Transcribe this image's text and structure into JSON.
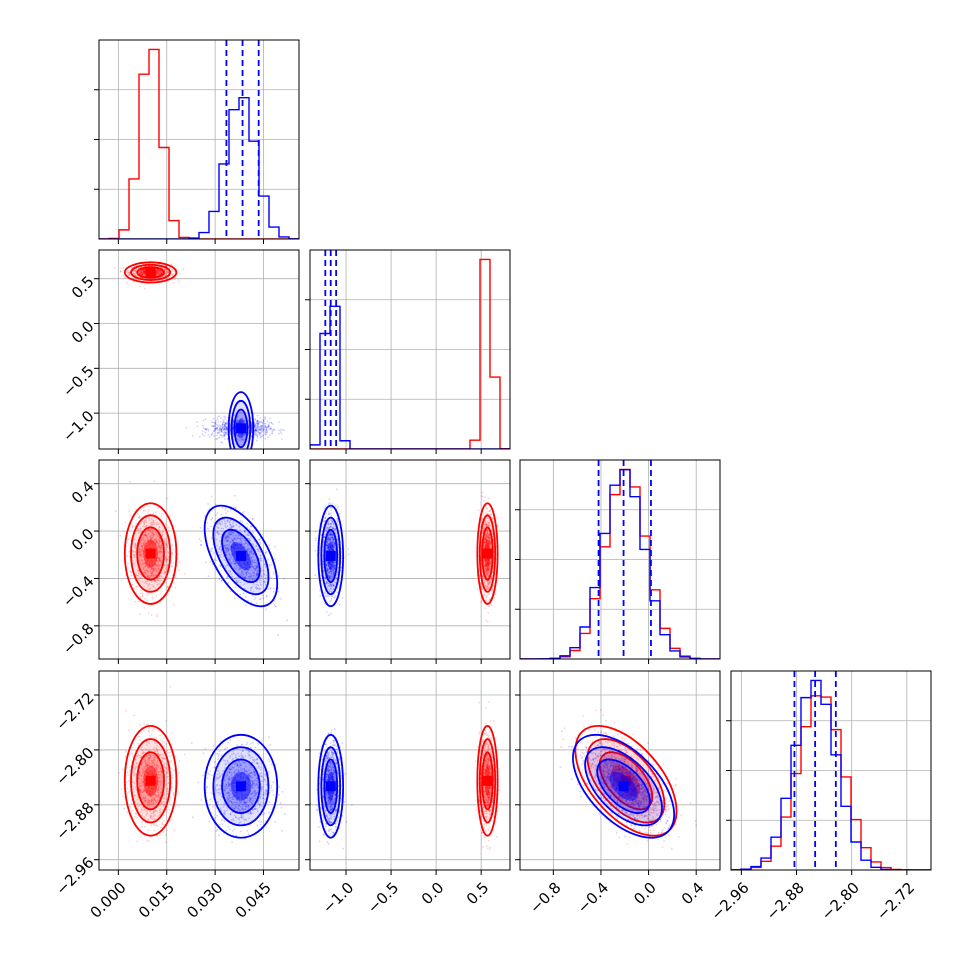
{
  "chart_data": {
    "type": "corner",
    "colors": {
      "series_a": "#ff0000",
      "series_b": "#0000ff",
      "grid": "#b0b0b0",
      "quantile_line": "#0000ff"
    },
    "grid": true,
    "parameters": [
      {
        "range": [
          -0.006,
          0.056
        ],
        "ticks": [
          0.0,
          0.015,
          0.03,
          0.045
        ],
        "tick_labels": [
          "0.000",
          "0.015",
          "0.030",
          "0.045"
        ]
      },
      {
        "range": [
          -1.4,
          0.82
        ],
        "ticks": [
          -1.0,
          -0.5,
          0.0,
          0.5
        ],
        "tick_labels": [
          "−1.0",
          "−0.5",
          "0.0",
          "0.5"
        ]
      },
      {
        "range": [
          -1.08,
          0.6
        ],
        "ticks": [
          -0.8,
          -0.4,
          0.0,
          0.4
        ],
        "tick_labels": [
          "−0.8",
          "−0.4",
          "0.0",
          "0.4"
        ]
      },
      {
        "range": [
          -2.975,
          -2.685
        ],
        "ticks": [
          -2.96,
          -2.88,
          -2.8,
          -2.72
        ],
        "tick_labels": [
          "−2.96",
          "−2.88",
          "−2.80",
          "−2.72"
        ]
      }
    ],
    "series": [
      {
        "color": "#ff0000",
        "means": [
          0.01,
          0.57,
          -0.19,
          -2.845
        ],
        "sds": [
          0.0032,
          0.045,
          0.17,
          0.032
        ],
        "corr": [
          [
            0,
            1,
            0,
            0
          ],
          [
            0,
            2,
            0,
            0
          ],
          [
            0,
            3,
            0,
            0
          ],
          [
            1,
            2,
            0,
            0
          ],
          [
            1,
            3,
            0,
            0
          ],
          [
            2,
            3,
            -0.55,
            0
          ]
        ]
      },
      {
        "color": "#0000ff",
        "means": [
          0.038,
          -1.17,
          -0.21,
          -2.853
        ],
        "sds": [
          0.0045,
          0.055,
          0.17,
          0.03
        ],
        "corr": [
          [
            0,
            1,
            0,
            0
          ],
          [
            0,
            2,
            -0.55,
            0
          ],
          [
            0,
            3,
            0,
            0
          ],
          [
            1,
            2,
            0,
            0
          ],
          [
            1,
            3,
            0,
            0
          ],
          [
            2,
            3,
            -0.55,
            0
          ]
        ]
      }
    ],
    "quantile_lines": [
      [
        0.0335,
        0.0385,
        0.0435
      ],
      [
        -1.23,
        -1.17,
        -1.11
      ],
      [
        -0.42,
        -0.21,
        0.02
      ],
      [
        -2.883,
        -2.853,
        -2.823
      ]
    ]
  }
}
